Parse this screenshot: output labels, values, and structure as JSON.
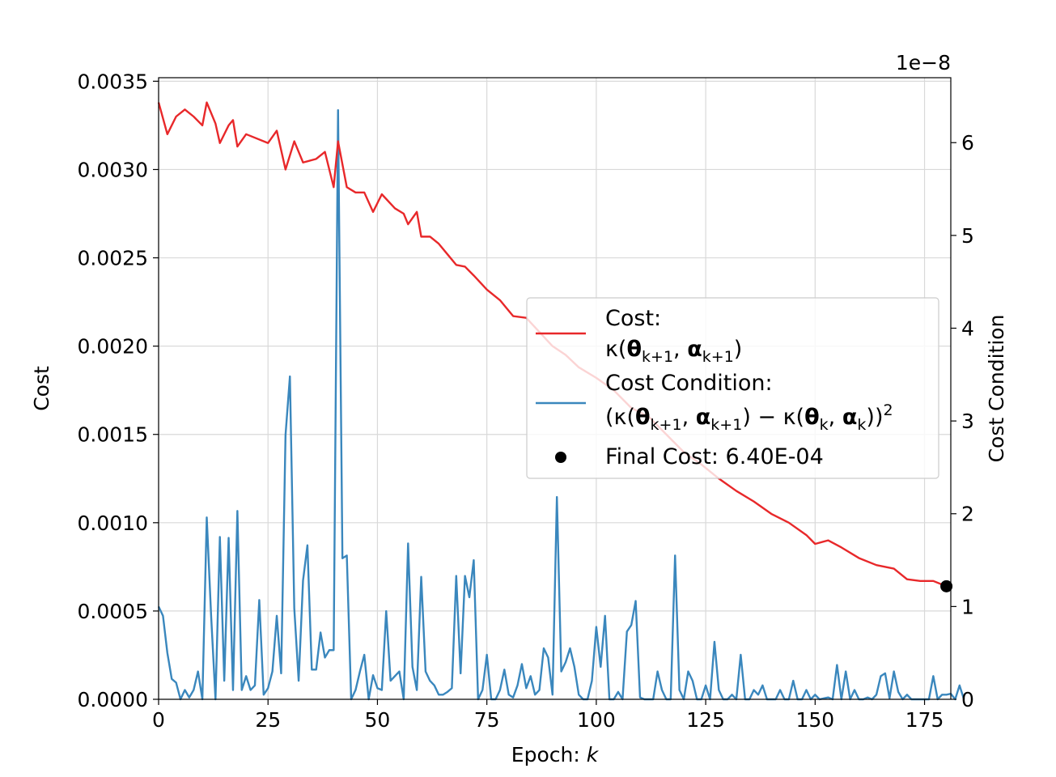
{
  "chart_data": {
    "type": "line",
    "xlabel": "Epoch: k",
    "ylabel": "Cost",
    "y2label": "Cost Condition",
    "y2_offset_text": "1e−8",
    "xlim": [
      0,
      181
    ],
    "ylim": [
      0,
      0.00352
    ],
    "y2lim": [
      0,
      6.7
    ],
    "x_ticks": [
      "0",
      "25",
      "50",
      "75",
      "100",
      "125",
      "150",
      "175"
    ],
    "y_ticks": [
      "0.0000",
      "0.0005",
      "0.0010",
      "0.0015",
      "0.0020",
      "0.0025",
      "0.0030",
      "0.0035"
    ],
    "y2_ticks": [
      "0",
      "1",
      "2",
      "3",
      "4",
      "5",
      "6"
    ],
    "grid": true,
    "legend_position": "center-right",
    "colors": {
      "cost": "#e8282a",
      "condition": "#3a87bd",
      "final": "#000000"
    },
    "legend": {
      "cost_line1": "Cost:",
      "cost_line2": "κ(θk+1, αk+1)",
      "condition_line1": "Cost Condition:",
      "condition_line2": "(κ(θk+1, αk+1) − κ(θk, αk))2",
      "final": "Final Cost: 6.40E-04"
    },
    "series": [
      {
        "name": "Cost",
        "axis": "left",
        "keypoints": [
          [
            0,
            0.00338
          ],
          [
            2,
            0.0032
          ],
          [
            4,
            0.0033
          ],
          [
            6,
            0.00334
          ],
          [
            8,
            0.0033
          ],
          [
            10,
            0.00325
          ],
          [
            11,
            0.00338
          ],
          [
            13,
            0.00326
          ],
          [
            14,
            0.00315
          ],
          [
            16,
            0.00325
          ],
          [
            17,
            0.00328
          ],
          [
            18,
            0.00313
          ],
          [
            20,
            0.0032
          ],
          [
            22,
            0.00318
          ],
          [
            25,
            0.00315
          ],
          [
            27,
            0.00322
          ],
          [
            29,
            0.003
          ],
          [
            31,
            0.00316
          ],
          [
            33,
            0.00304
          ],
          [
            36,
            0.00306
          ],
          [
            38,
            0.0031
          ],
          [
            40,
            0.0029
          ],
          [
            41,
            0.00316
          ],
          [
            43,
            0.0029
          ],
          [
            45,
            0.00287
          ],
          [
            47,
            0.00287
          ],
          [
            49,
            0.00276
          ],
          [
            51,
            0.00286
          ],
          [
            54,
            0.00278
          ],
          [
            56,
            0.00275
          ],
          [
            57,
            0.00269
          ],
          [
            59,
            0.00276
          ],
          [
            60,
            0.00262
          ],
          [
            62,
            0.00262
          ],
          [
            64,
            0.00258
          ],
          [
            66,
            0.00252
          ],
          [
            68,
            0.00246
          ],
          [
            70,
            0.00245
          ],
          [
            72,
            0.0024
          ],
          [
            75,
            0.00232
          ],
          [
            78,
            0.00226
          ],
          [
            81,
            0.00217
          ],
          [
            84,
            0.00216
          ],
          [
            87,
            0.00208
          ],
          [
            90,
            0.002
          ],
          [
            93,
            0.00195
          ],
          [
            96,
            0.00188
          ],
          [
            100,
            0.00182
          ],
          [
            104,
            0.00175
          ],
          [
            108,
            0.00165
          ],
          [
            112,
            0.0016
          ],
          [
            116,
            0.0015
          ],
          [
            120,
            0.0014
          ],
          [
            124,
            0.00133
          ],
          [
            128,
            0.00125
          ],
          [
            132,
            0.00118
          ],
          [
            136,
            0.00112
          ],
          [
            140,
            0.00105
          ],
          [
            144,
            0.001
          ],
          [
            148,
            0.00093
          ],
          [
            150,
            0.00088
          ],
          [
            153,
            0.0009
          ],
          [
            156,
            0.00086
          ],
          [
            160,
            0.0008
          ],
          [
            164,
            0.00076
          ],
          [
            168,
            0.00074
          ],
          [
            171,
            0.00068
          ],
          [
            174,
            0.00067
          ],
          [
            177,
            0.00067
          ],
          [
            180,
            0.00064
          ]
        ]
      },
      {
        "name": "Cost Condition",
        "axis": "right",
        "values": [
          1.0,
          0.9,
          0.5,
          0.22,
          0.18,
          0.0,
          0.1,
          0.02,
          0.1,
          0.3,
          0.0,
          1.96,
          0.9,
          0.0,
          1.75,
          0.2,
          1.74,
          0.1,
          2.03,
          0.1,
          0.25,
          0.1,
          0.15,
          1.07,
          0.05,
          0.12,
          0.3,
          0.9,
          0.28,
          2.85,
          3.48,
          0.98,
          0.2,
          1.28,
          1.66,
          0.32,
          0.32,
          0.72,
          0.45,
          0.53,
          0.53,
          6.35,
          1.52,
          1.55,
          0.0,
          0.1,
          0.3,
          0.48,
          0.0,
          0.26,
          0.12,
          0.1,
          0.95,
          0.2,
          0.25,
          0.3,
          0.0,
          1.68,
          0.35,
          0.1,
          1.32,
          0.3,
          0.2,
          0.15,
          0.05,
          0.05,
          0.08,
          0.12,
          1.33,
          0.28,
          1.33,
          1.1,
          1.5,
          0.0,
          0.1,
          0.48,
          0.0,
          0.0,
          0.1,
          0.32,
          0.05,
          0.02,
          0.15,
          0.38,
          0.12,
          0.25,
          0.05,
          0.1,
          0.55,
          0.45,
          0.05,
          2.18,
          0.3,
          0.4,
          0.55,
          0.35,
          0.05,
          0.0,
          0.0,
          0.2,
          0.78,
          0.35,
          0.9,
          0.0,
          0.0,
          0.08,
          0.0,
          0.73,
          0.8,
          1.06,
          0.02,
          0.0,
          0.0,
          0.0,
          0.3,
          0.1,
          0.0,
          0.0,
          1.55,
          0.1,
          0.0,
          0.3,
          0.2,
          0.0,
          0.0,
          0.15,
          0.0,
          0.62,
          0.1,
          0.0,
          0.0,
          0.05,
          0.0,
          0.48,
          0.0,
          0.0,
          0.1,
          0.05,
          0.15,
          0.0,
          0.0,
          0.0,
          0.1,
          0.0,
          0.0,
          0.2,
          0.0,
          0.0,
          0.1,
          0.0,
          0.05,
          0.0,
          0.01,
          0.02,
          0.0,
          0.37,
          0.0,
          0.3,
          0.0,
          0.1,
          0.0,
          0.0,
          0.02,
          0.0,
          0.05,
          0.25,
          0.28,
          0.01,
          0.3,
          0.08,
          0.0,
          0.05,
          0.0,
          0.0,
          0.0,
          0.0,
          0.0,
          0.25,
          0.0,
          0.05,
          0.05,
          0.06,
          0.0,
          0.15,
          0.0
        ]
      }
    ],
    "final_point": {
      "x": 180,
      "y": 0.00064,
      "label": "Final Cost: 6.40E-04"
    }
  }
}
